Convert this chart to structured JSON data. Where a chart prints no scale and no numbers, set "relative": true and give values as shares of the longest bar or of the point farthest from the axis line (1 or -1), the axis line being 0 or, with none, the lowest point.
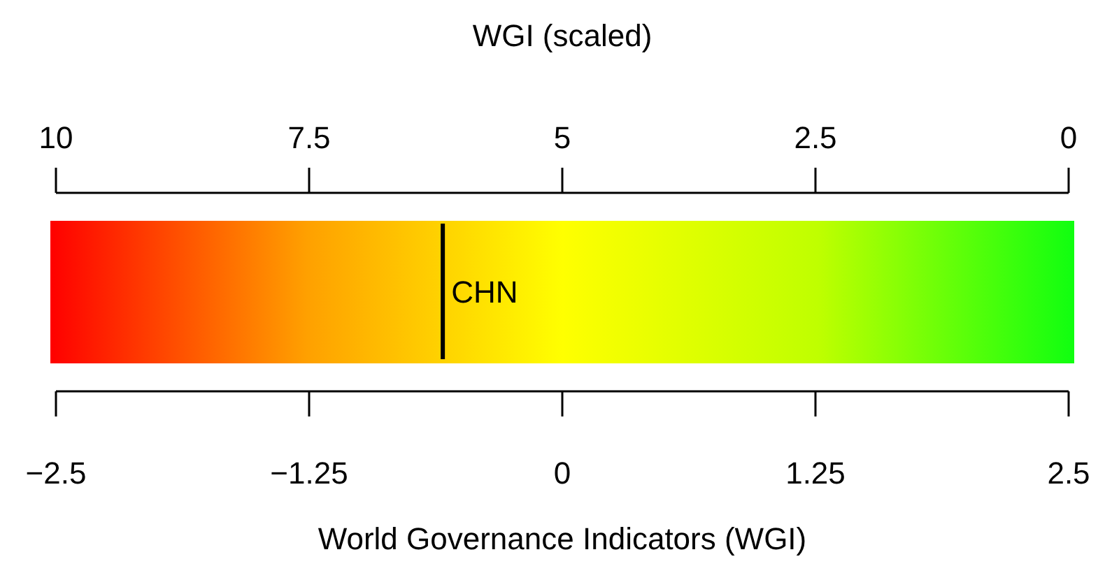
{
  "chart_data": {
    "type": "line",
    "relative": true,
    "xlabel": "World Governance Indicators (WGI)",
    "x2label": "WGI (scaled)",
    "xlim": [
      -2.5,
      2.5
    ],
    "xticks": [
      {
        "value": -2.5,
        "label": "−2.5"
      },
      {
        "value": -1.25,
        "label": "−1.25"
      },
      0,
      1.25,
      2.5
    ],
    "x2lim": [
      10,
      0
    ],
    "x2ticks": [
      10,
      7.5,
      5,
      2.5,
      0
    ],
    "series": [
      {
        "name": "CHN",
        "color": "#000000",
        "x": [
          -0.59,
          -0.59
        ],
        "values": [
          0,
          1
        ]
      }
    ]
  }
}
